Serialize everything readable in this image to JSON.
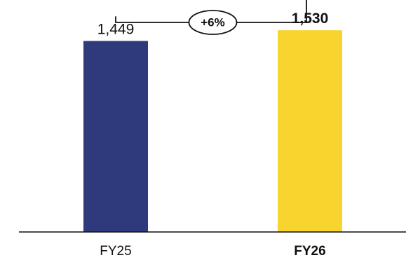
{
  "chart_data": {
    "type": "bar",
    "title": "",
    "xlabel": "",
    "ylabel": "",
    "categories": [
      "FY25",
      "FY26"
    ],
    "values": [
      1449,
      1530
    ],
    "value_labels": [
      "1,449",
      "1,530"
    ],
    "emphasized_category": "FY26",
    "colors": [
      "#2e3a7c",
      "#f8d52e"
    ],
    "ylim": [
      0,
      1600
    ],
    "grid": false,
    "legend": "none",
    "change_annotation": {
      "label": "+6%",
      "from": "FY25",
      "to": "FY26"
    }
  }
}
